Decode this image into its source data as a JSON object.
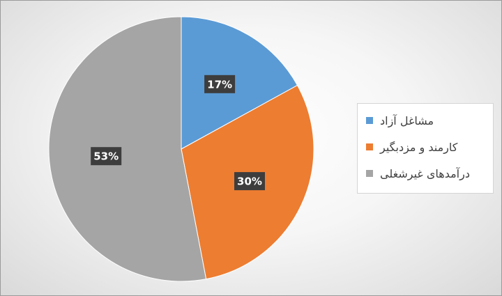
{
  "chart_data": {
    "type": "pie",
    "slices": [
      {
        "name": "مشاغل آزاد",
        "value": 17,
        "label": "17%",
        "color": "#5B9BD5"
      },
      {
        "name": "کارمند و مزدبگیر",
        "value": 30,
        "label": "30%",
        "color": "#ED7D31"
      },
      {
        "name": "درآمدهای غیرشغلی",
        "value": 53,
        "label": "53%",
        "color": "#A5A5A5"
      }
    ],
    "legend_position": "right",
    "data_labels": "percent, white text on dark box"
  }
}
